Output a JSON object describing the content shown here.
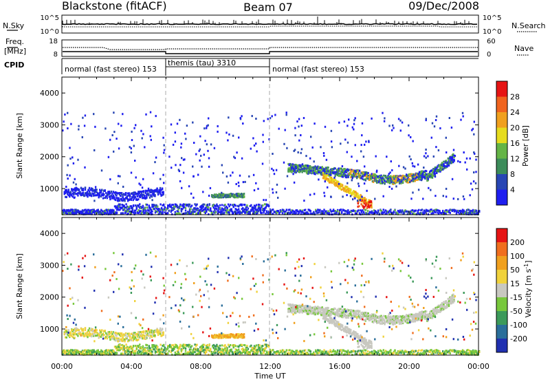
{
  "header": {
    "station": "Blackstone (fitACF)",
    "beam": "Beam 07",
    "date": "09/Dec/2008"
  },
  "top_panels": {
    "nsky_label": "N.Sky",
    "nsky_ticks": [
      "10^5",
      "10^0"
    ],
    "nsearch_label": "N.Search",
    "freq_label_1": "Freq.",
    "freq_label_2": "[MHz]",
    "freq_ticks": [
      "18",
      "8"
    ],
    "nave_ticks": [
      "60",
      "0"
    ],
    "nave_label": "Nave",
    "cpid_label": "CPID",
    "cpid_segments": [
      {
        "label": "normal (fast stereo) 153",
        "start_hour": 0,
        "end_hour": 6
      },
      {
        "label": "themis (tau) 3310",
        "start_hour": 6,
        "end_hour": 12
      },
      {
        "label": "normal (fast stereo) 153",
        "start_hour": 12,
        "end_hour": 24
      }
    ]
  },
  "chart_data": [
    {
      "type": "heatmap",
      "ylabel": "Slant Range [km]",
      "xlabel": "",
      "xlim": [
        0,
        24
      ],
      "ylim": [
        180,
        4500
      ],
      "yticks": [
        1000,
        2000,
        3000,
        4000
      ],
      "colorbar": {
        "label": "Power [dB]",
        "ticks": [
          "4",
          "8",
          "12",
          "16",
          "20",
          "24",
          "28"
        ],
        "range": [
          0,
          30
        ],
        "colors": [
          "#1e1ef0",
          "#2846b4",
          "#3c8c5a",
          "#64b446",
          "#e6dc1e",
          "#f0a01e",
          "#f0641e",
          "#e61414"
        ]
      }
    },
    {
      "type": "heatmap",
      "ylabel": "Slant Range [km]",
      "xlabel": "Time UT",
      "xlim": [
        0,
        24
      ],
      "ylim": [
        180,
        4500
      ],
      "yticks": [
        1000,
        2000,
        3000,
        4000
      ],
      "xticks": [
        "00:00",
        "04:00",
        "08:00",
        "12:00",
        "16:00",
        "20:00",
        "00:00"
      ],
      "colorbar": {
        "label": "Velocity [m s-1]",
        "ticks": [
          "200",
          "100",
          "50",
          "15",
          "-15",
          "-50",
          "-100",
          "-200"
        ],
        "colors": [
          "#2030b0",
          "#2a6e9a",
          "#3c9a5a",
          "#78c83c",
          "#c8c8c0",
          "#f0d23c",
          "#f0a01e",
          "#f06e1e",
          "#e61414"
        ]
      }
    }
  ]
}
